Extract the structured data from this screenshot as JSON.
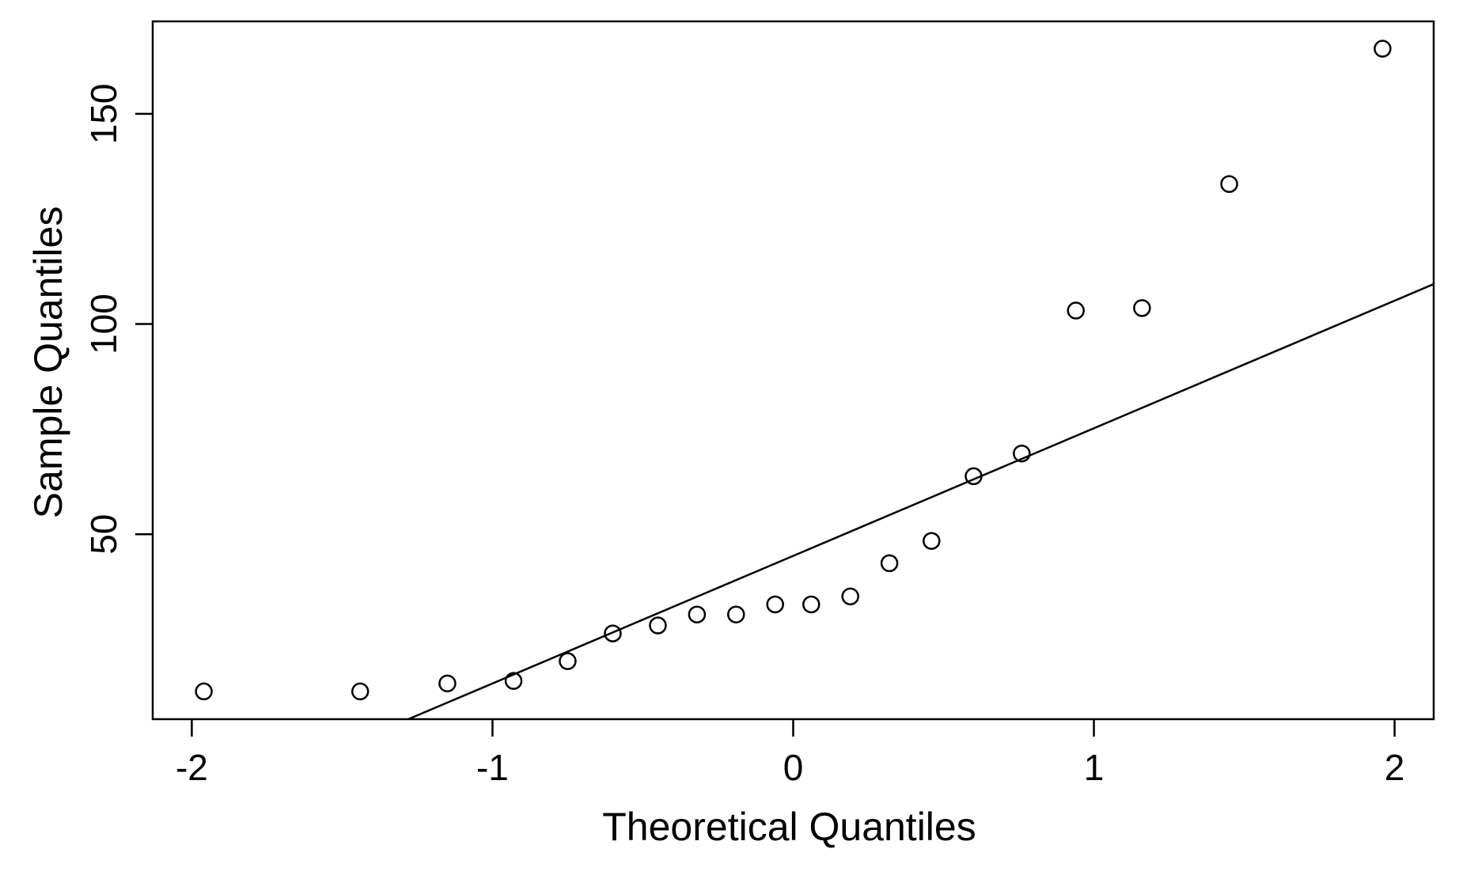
{
  "chart_data": {
    "type": "scatter",
    "title": "",
    "xlabel": "Theoretical Quantiles",
    "ylabel": "Sample Quantiles",
    "xlim": [
      -2.13,
      2.13
    ],
    "ylim": [
      6,
      172
    ],
    "x_ticks": [
      {
        "value": -2,
        "label": "-2"
      },
      {
        "value": -1,
        "label": "-1"
      },
      {
        "value": 0,
        "label": "0"
      },
      {
        "value": 1,
        "label": "1"
      },
      {
        "value": 2,
        "label": "2"
      }
    ],
    "y_ticks": [
      {
        "value": 50,
        "label": "50"
      },
      {
        "value": 100,
        "label": "100"
      },
      {
        "value": 150,
        "label": "150"
      }
    ],
    "grid": false,
    "legend": "none",
    "marker": "open-circle",
    "colors": {
      "points": "#000000",
      "line": "#000000",
      "axes": "#000000"
    },
    "series": [
      {
        "points": [
          {
            "x": -1.96,
            "y": 12.6
          },
          {
            "x": -1.44,
            "y": 12.6
          },
          {
            "x": -1.15,
            "y": 14.5
          },
          {
            "x": -0.93,
            "y": 15.1
          },
          {
            "x": -0.75,
            "y": 19.8
          },
          {
            "x": -0.6,
            "y": 26.4
          },
          {
            "x": -0.45,
            "y": 28.3
          },
          {
            "x": -0.32,
            "y": 30.9
          },
          {
            "x": -0.19,
            "y": 30.9
          },
          {
            "x": -0.06,
            "y": 33.3
          },
          {
            "x": 0.06,
            "y": 33.3
          },
          {
            "x": 0.19,
            "y": 35.2
          },
          {
            "x": 0.32,
            "y": 43.1
          },
          {
            "x": 0.46,
            "y": 48.4
          },
          {
            "x": 0.6,
            "y": 63.8
          },
          {
            "x": 0.76,
            "y": 69.2
          },
          {
            "x": 0.94,
            "y": 103.2
          },
          {
            "x": 1.16,
            "y": 103.8
          },
          {
            "x": 1.45,
            "y": 133.3
          },
          {
            "x": 1.96,
            "y": 165.5
          }
        ]
      }
    ],
    "reference_line": {
      "points": [
        {
          "x": -1.28,
          "y": 6
        },
        {
          "x": 2.13,
          "y": 109.5
        }
      ]
    }
  }
}
